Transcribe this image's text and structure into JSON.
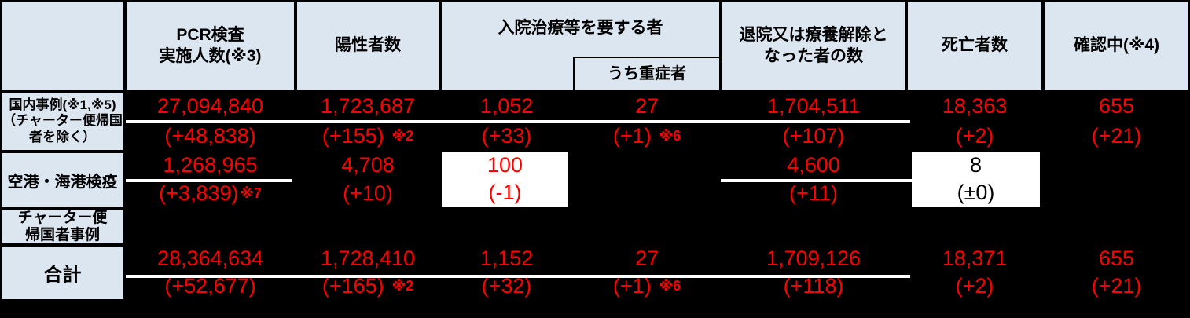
{
  "colors": {
    "header_bg": "#dce6f1",
    "value_red": "#ff0000",
    "data_bg": "#000000",
    "highlight_bg": "#ffffff",
    "border": "#000000"
  },
  "header": {
    "pcr": "PCR検査\n実施人数(※3)",
    "positive": "陽性者数",
    "hospital": "入院治療等を要する者",
    "severe": "うち重症者",
    "discharged": "退院又は療養解除と\nなった者の数",
    "deaths": "死亡者数",
    "confirming": "確認中(※4)"
  },
  "rows": [
    {
      "id": "domestic",
      "label": "国内事例(※1,※5)\n（チャーター便帰国\n者を除く）",
      "cells": {
        "pcr": {
          "value": "27,094,840",
          "change": "(+48,838)",
          "note": ""
        },
        "positive": {
          "value": "1,723,687",
          "change": "(+155)",
          "note": "※2"
        },
        "hospital": {
          "value": "1,052",
          "change": "(+33)",
          "note": ""
        },
        "severe": {
          "value": "27",
          "change": "(+1)",
          "note": "※6"
        },
        "discharged": {
          "value": "1,704,511",
          "change": "(+107)",
          "note": ""
        },
        "deaths": {
          "value": "18,363",
          "change": "(+2)",
          "note": ""
        },
        "confirming": {
          "value": "655",
          "change": "(+21)",
          "note": ""
        }
      }
    },
    {
      "id": "quarantine",
      "label": "空港・海港検疫",
      "cells": {
        "pcr": {
          "value": "1,268,965",
          "change": "(+3,839)",
          "note": "※7"
        },
        "positive": {
          "value": "4,708",
          "change": "(+10)",
          "note": ""
        },
        "hospital": {
          "value": "100",
          "change": "(-1)",
          "note": "",
          "highlight": true
        },
        "discharged": {
          "value": "4,600",
          "change": "(+11)",
          "note": ""
        },
        "deaths": {
          "value": "8",
          "change": "(±0)",
          "note": "",
          "highlight": true
        }
      }
    },
    {
      "id": "charter",
      "label": "チャーター便\n帰国者事例",
      "cells": {}
    },
    {
      "id": "total",
      "label": "合計",
      "cells": {
        "pcr": {
          "value": "28,364,634",
          "change": "(+52,677)",
          "note": ""
        },
        "positive": {
          "value": "1,728,410",
          "change": "(+165)",
          "note": "※2"
        },
        "hospital": {
          "value": "1,152",
          "change": "(+32)",
          "note": ""
        },
        "severe": {
          "value": "27",
          "change": "(+1)",
          "note": "※6"
        },
        "discharged": {
          "value": "1,709,126",
          "change": "(+118)",
          "note": ""
        },
        "deaths": {
          "value": "18,371",
          "change": "(+2)",
          "note": ""
        },
        "confirming": {
          "value": "655",
          "change": "(+21)",
          "note": ""
        }
      }
    }
  ],
  "chart_data": {
    "type": "table",
    "columns": [
      "",
      "PCR検査実施人数(※3)",
      "陽性者数",
      "入院治療等を要する者",
      "うち重症者",
      "退院又は療養解除となった者の数",
      "死亡者数",
      "確認中(※4)"
    ],
    "rows": [
      [
        "国内事例(※1,※5)（チャーター便帰国者を除く）",
        "27,094,840 (+48,838)",
        "1,723,687 (+155)※2",
        "1,052 (+33)",
        "27 (+1)※6",
        "1,704,511 (+107)",
        "18,363 (+2)",
        "655 (+21)"
      ],
      [
        "空港・海港検疫",
        "1,268,965 (+3,839)※7",
        "4,708 (+10)",
        "100 (-1)",
        "",
        "4,600 (+11)",
        "8 (±0)",
        ""
      ],
      [
        "チャーター便帰国者事例",
        "",
        "",
        "",
        "",
        "",
        "",
        ""
      ],
      [
        "合計",
        "28,364,634 (+52,677)",
        "1,728,410 (+165)※2",
        "1,152 (+32)",
        "27 (+1)※6",
        "1,709,126 (+118)",
        "18,371 (+2)",
        "655 (+21)"
      ]
    ]
  }
}
